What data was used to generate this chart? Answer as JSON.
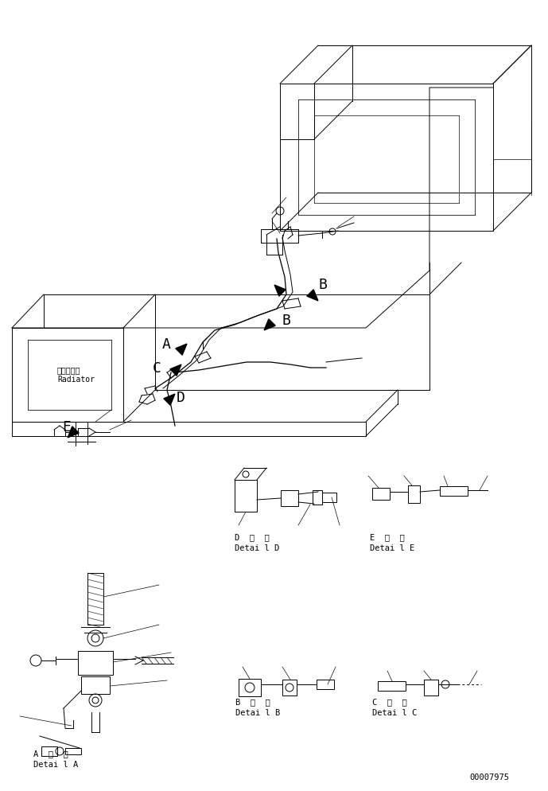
{
  "bg_color": "#ffffff",
  "lc": "#000000",
  "lw": 0.7,
  "fig_w": 6.89,
  "fig_h": 9.94,
  "dpi": 100,
  "part_number": "00007975"
}
